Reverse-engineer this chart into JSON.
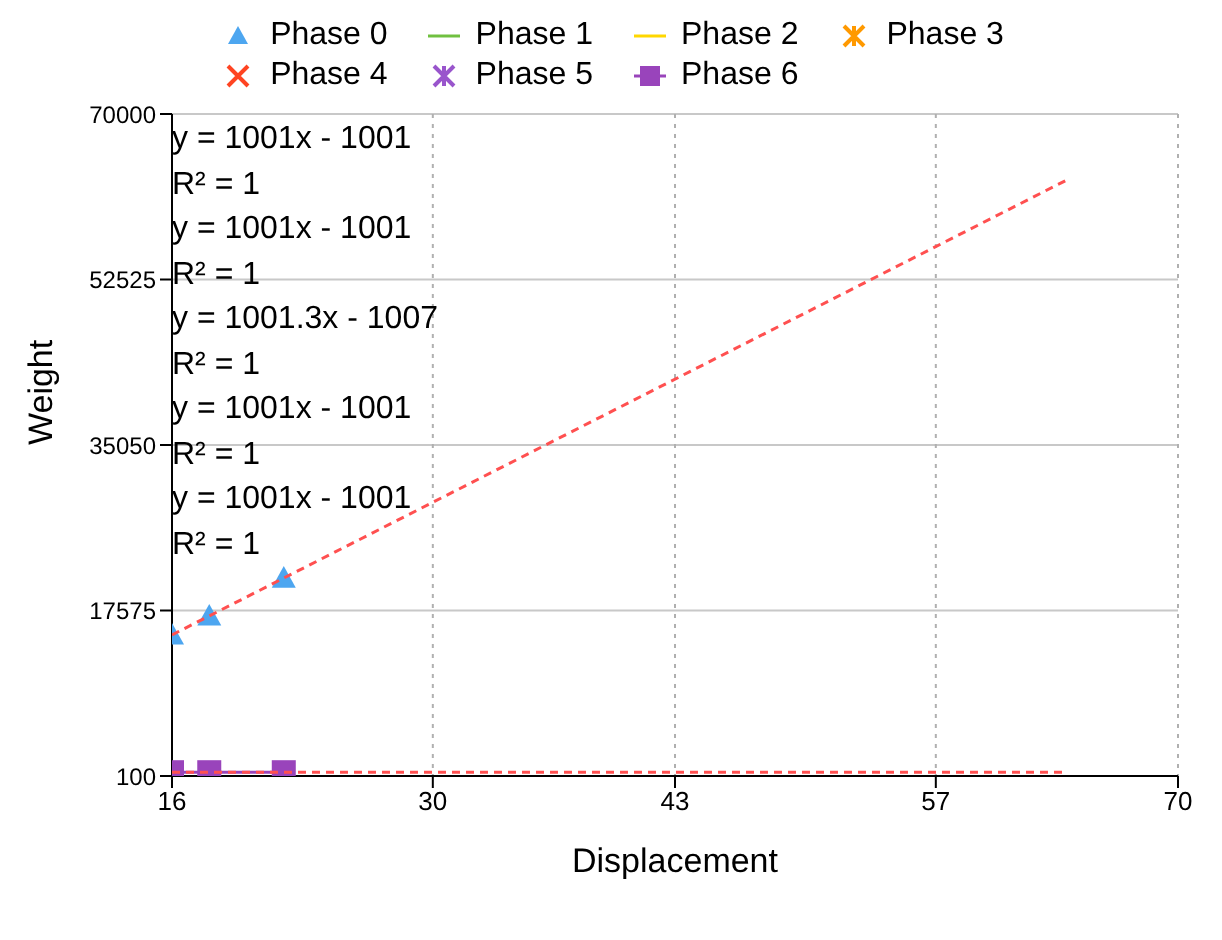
{
  "chart_data": {
    "type": "scatter",
    "xlabel": "Displacement",
    "ylabel": "Weight",
    "xlim": [
      16,
      70
    ],
    "xticks": [
      16,
      30,
      43,
      57,
      70
    ],
    "ylim": [
      100,
      70000
    ],
    "yticks": [
      100,
      17575,
      35050,
      52525,
      70000
    ],
    "grid": true,
    "legend": "top",
    "series": [
      {
        "name": "Phase 0",
        "color": "#4da6f0",
        "marker": "triangle",
        "x": [
          16,
          18,
          22
        ],
        "values": [
          15000,
          17000,
          21000
        ]
      },
      {
        "name": "Phase 1",
        "color": "#70c040",
        "type": "line",
        "marker": "none"
      },
      {
        "name": "Phase 2",
        "color": "#ffd700",
        "type": "line",
        "marker": "none"
      },
      {
        "name": "Phase 3",
        "color": "#ff9900",
        "marker": "star"
      },
      {
        "name": "Phase 4",
        "color": "#ff4422",
        "marker": "cross"
      },
      {
        "name": "Phase 5",
        "color": "#9955cc",
        "marker": "star"
      },
      {
        "name": "Phase 6",
        "color": "#9944bb",
        "type": "line",
        "marker": "square",
        "x": [
          16,
          18,
          22
        ],
        "values": [
          500,
          500,
          500
        ]
      },
      {
        "type": "line",
        "color": "#ff5050",
        "marker": "none",
        "line_style": "dashed",
        "x": [
          16,
          64
        ],
        "values": [
          15000,
          63000
        ]
      },
      {
        "type": "line",
        "color": "#ff5050",
        "marker": "none",
        "line_style": "dashed",
        "x": [
          16,
          64
        ],
        "values": [
          500,
          500
        ]
      }
    ],
    "annotations": [
      "y = 1001x - 1001",
      "R² = 1",
      "y = 1001x - 1001",
      "R² = 1",
      "y = 1001.3x - 1007",
      "R² = 1",
      "y = 1001x - 1001",
      "R² = 1",
      "y = 1001x - 1001",
      "R² = 1"
    ]
  }
}
